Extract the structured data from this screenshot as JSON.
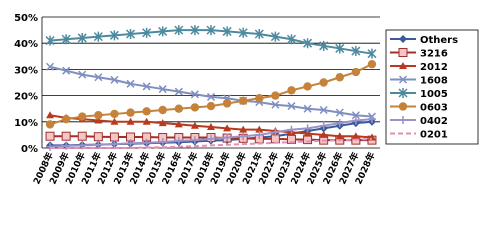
{
  "chart_data": {
    "type": "line",
    "categories": [
      "2008年",
      "2009年",
      "2010年",
      "2011年",
      "2012年",
      "2013年",
      "2014年",
      "2015年",
      "2016年",
      "2017年",
      "2018年",
      "2019年",
      "2020年",
      "2021年",
      "2022年",
      "2023年",
      "2024年",
      "2025年",
      "2026年",
      "2027年",
      "2028年"
    ],
    "ylim": [
      0,
      50
    ],
    "yticks": [
      {
        "value": 0,
        "label": "0%"
      },
      {
        "value": 10,
        "label": "10%"
      },
      {
        "value": 20,
        "label": "20%"
      },
      {
        "value": 30,
        "label": "30%"
      },
      {
        "value": 40,
        "label": "40%"
      },
      {
        "value": 50,
        "label": "50%"
      }
    ],
    "grid": true,
    "legend": "right",
    "series": [
      {
        "name": "Others",
        "color": "#3b5a9a",
        "marker": "diamond",
        "values": [
          1,
          1,
          1.2,
          1.3,
          1.5,
          1.6,
          1.8,
          2,
          2.2,
          2.5,
          2.8,
          3,
          3.5,
          4,
          4.5,
          5.5,
          6.5,
          7.5,
          8.5,
          9.5,
          10
        ]
      },
      {
        "name": "3216",
        "color": "#a0302f",
        "marker": "square",
        "values": [
          4.5,
          4.5,
          4.5,
          4.3,
          4.2,
          4.2,
          4.2,
          4,
          4,
          4,
          4,
          3.8,
          3.7,
          3.5,
          3.5,
          3.3,
          3.2,
          3,
          3,
          3,
          3
        ]
      },
      {
        "name": "2012",
        "color": "#b83a1e",
        "marker": "triangle",
        "values": [
          12.5,
          11.5,
          11,
          10.5,
          10,
          10,
          10,
          9.5,
          9,
          8.5,
          8,
          7.5,
          7,
          7,
          6.5,
          6,
          5.5,
          5,
          4.5,
          4.5,
          4
        ]
      },
      {
        "name": "1608",
        "color": "#7f8fc0",
        "marker": "x",
        "values": [
          31,
          29.5,
          28,
          27,
          26,
          24.5,
          23.5,
          22.5,
          21.5,
          20.5,
          19.5,
          19,
          18,
          17.5,
          16.5,
          16,
          15,
          14.5,
          13.5,
          12.5,
          12
        ]
      },
      {
        "name": "1005",
        "color": "#4d8aa0",
        "marker": "star",
        "values": [
          41,
          41.5,
          42,
          42.5,
          43,
          43.5,
          44,
          44.5,
          45,
          45,
          45,
          44.5,
          44,
          43.5,
          42.5,
          41.5,
          40,
          39,
          38,
          37,
          36
        ]
      },
      {
        "name": "0603",
        "color": "#c4823a",
        "marker": "circle",
        "values": [
          9,
          11,
          12,
          12.5,
          13,
          13.5,
          14,
          14.5,
          15,
          15.5,
          16,
          17,
          18,
          19,
          20,
          22,
          23.5,
          25,
          27,
          29,
          32
        ]
      },
      {
        "name": "0402",
        "color": "#9b92cc",
        "marker": "plus",
        "values": [
          0.5,
          0.8,
          1,
          1.2,
          1.5,
          1.8,
          2,
          2.3,
          2.7,
          3,
          3.5,
          4,
          4.5,
          5,
          6,
          7,
          7.5,
          8.5,
          9.5,
          10.5,
          11
        ]
      },
      {
        "name": "0201",
        "color": "#e48fb4",
        "marker": "none",
        "dash": true,
        "values": [
          0,
          0,
          0,
          0,
          0,
          0,
          0.2,
          0.3,
          0.5,
          0.7,
          1,
          1.2,
          1.5,
          1.7,
          2,
          2.2,
          2.5,
          2.8,
          3,
          3.2,
          3.5
        ]
      }
    ]
  }
}
